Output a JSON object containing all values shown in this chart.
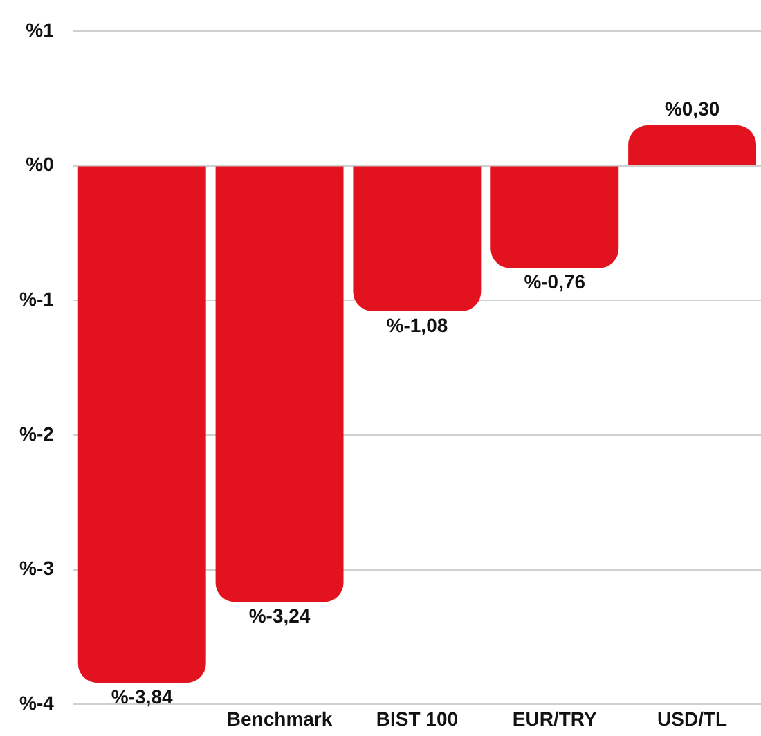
{
  "chart_data": {
    "type": "bar",
    "categories": [
      null,
      "Benchmark",
      "BIST 100",
      "EUR/TRY",
      "USD/TL"
    ],
    "values": [
      -3.84,
      -3.24,
      -1.08,
      -0.76,
      0.3
    ],
    "color": "#e2131e",
    "value_labels": [
      "%-3,84",
      "%-3,24",
      "%-1,08",
      "%-0,76",
      "%0,30"
    ],
    "ylim": [
      -4,
      1
    ],
    "yticks": [
      {
        "value": -4,
        "label": "%-4"
      },
      {
        "value": -3,
        "label": "%-3"
      },
      {
        "value": -2,
        "label": "%-2"
      },
      {
        "value": -1,
        "label": "%-1"
      },
      {
        "value": 0,
        "label": "%0"
      },
      {
        "value": 1,
        "label": "%1"
      }
    ],
    "grid": "y",
    "legend": false
  }
}
